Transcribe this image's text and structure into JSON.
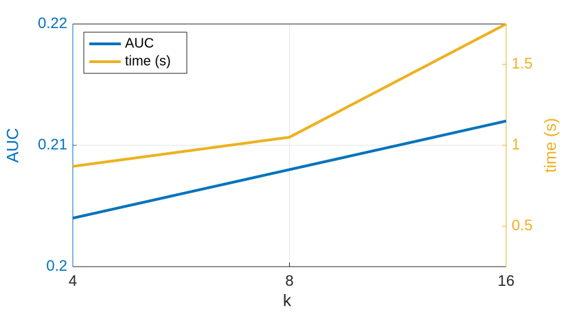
{
  "chart_data": {
    "type": "line",
    "xlabel": "k",
    "ylabel": "AUC",
    "y2label": "time (s)",
    "x": [
      4,
      8,
      16
    ],
    "xscale": "log",
    "xlim": [
      4,
      16
    ],
    "xticks": [
      4,
      8,
      16
    ],
    "ylim": [
      0.2,
      0.22
    ],
    "yticks": [
      0.2,
      0.21,
      0.22
    ],
    "y2lim": [
      0.25,
      1.75
    ],
    "y2ticks": [
      0.5,
      1,
      1.5
    ],
    "grid": true,
    "legend": "upper-left",
    "series": [
      {
        "name": "AUC",
        "color": "#0072bd",
        "values": [
          0.204,
          0.208,
          0.212
        ]
      },
      {
        "name": "time (s)",
        "color": "#edb120",
        "axis": "y2",
        "values": [
          0.87,
          1.05,
          1.75
        ]
      }
    ]
  }
}
